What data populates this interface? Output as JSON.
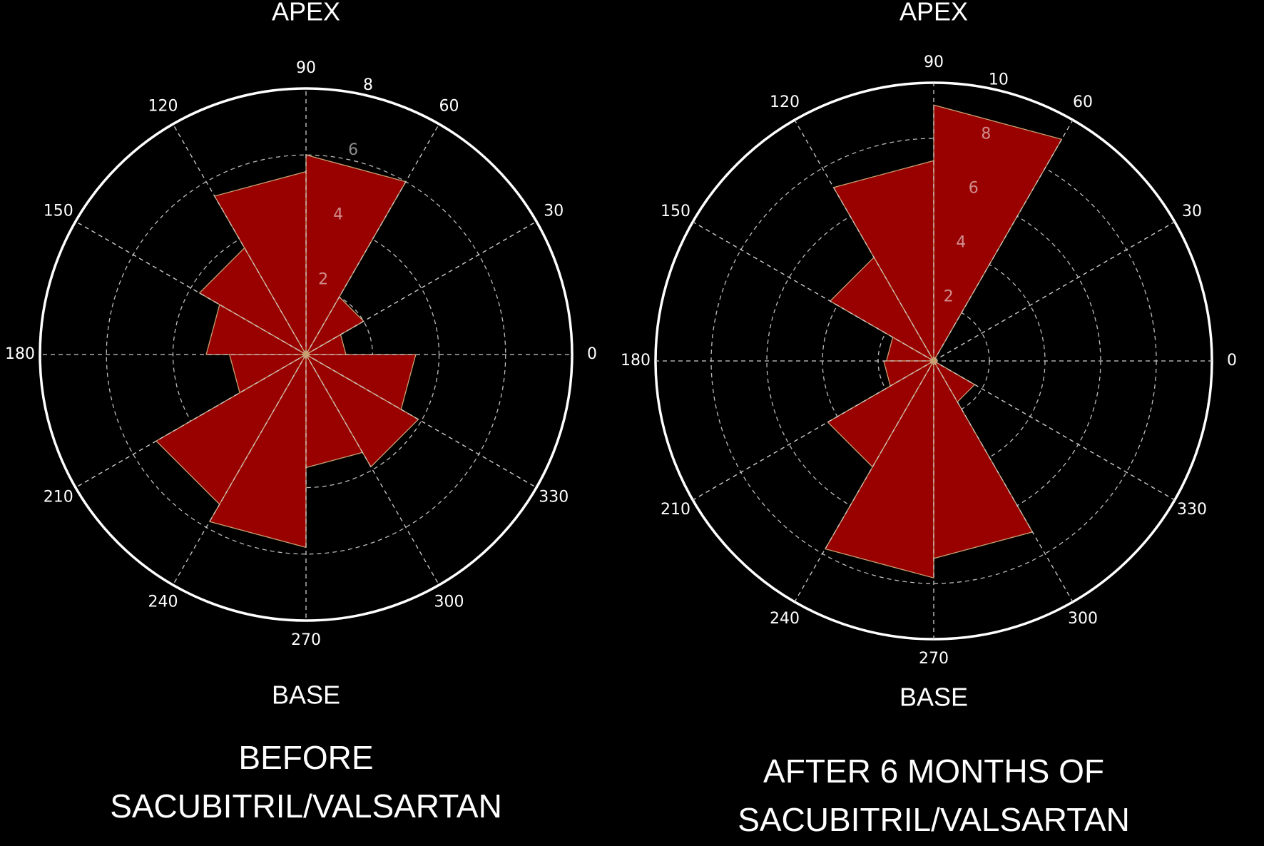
{
  "chart_data": [
    {
      "type": "polar-bar",
      "title": [
        "BEFORE",
        "SACUBITRIL/VALSARTAN"
      ],
      "top_label": "APEX",
      "bottom_label": "BASE",
      "thetaticks": [
        0,
        30,
        60,
        90,
        120,
        150,
        180,
        210,
        240,
        270,
        300,
        330
      ],
      "values": [
        1.2,
        2,
        6,
        5.5,
        3.7,
        3,
        2.3,
        5.2,
        5.8,
        3.4,
        3.9,
        3.3
      ],
      "rlim": [
        0,
        8
      ],
      "rticks": [
        2,
        4,
        6,
        8
      ],
      "color": "#990000",
      "grid": true
    },
    {
      "type": "polar-bar",
      "title": [
        "AFTER 6 MONTHS OF",
        "SACUBITRIL/VALSARTAN"
      ],
      "top_label": "APEX",
      "bottom_label": "BASE",
      "thetaticks": [
        0,
        30,
        60,
        90,
        120,
        150,
        180,
        210,
        240,
        270,
        300,
        330
      ],
      "values": [
        0,
        0,
        9.2,
        7.2,
        4.3,
        1.7,
        1.8,
        4.4,
        7.8,
        7.1,
        1.7,
        0
      ],
      "rlim": [
        0,
        10
      ],
      "rticks": [
        2,
        4,
        6,
        8,
        10
      ],
      "color": "#990000",
      "grid": true
    }
  ]
}
